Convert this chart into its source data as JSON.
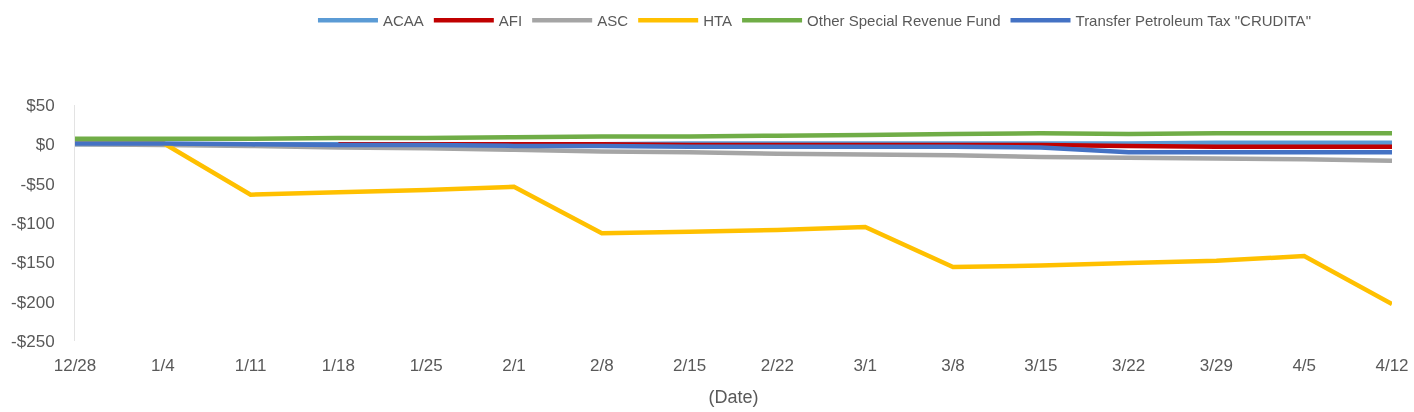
{
  "chart_data": {
    "type": "line",
    "xlabel": "(Date)",
    "categories": [
      "12/28",
      "1/4",
      "1/11",
      "1/18",
      "1/25",
      "2/1",
      "2/8",
      "2/15",
      "2/22",
      "3/1",
      "3/8",
      "3/15",
      "3/22",
      "3/29",
      "4/5",
      "4/12"
    ],
    "series": [
      {
        "name": "ACAA",
        "color": "#5b9bd5",
        "values": [
          0,
          0,
          0,
          0,
          0,
          0,
          0,
          1,
          1,
          1,
          1,
          1,
          1,
          2,
          2,
          2
        ]
      },
      {
        "name": "AFI",
        "color": "#c00000",
        "values": [
          null,
          null,
          null,
          0,
          0,
          0,
          0,
          -1,
          -1,
          -1,
          -1,
          -1,
          -2,
          -3,
          -3,
          -3
        ]
      },
      {
        "name": "ASC",
        "color": "#a5a5a5",
        "values": [
          0,
          -1,
          -2,
          -4,
          -5,
          -7,
          -9,
          -10,
          -12,
          -13,
          -14,
          -16,
          -17,
          -18,
          -19,
          -21
        ]
      },
      {
        "name": "HTA",
        "color": "#ffc000",
        "values": [
          2,
          2,
          -64,
          -61,
          -58,
          -54,
          -113,
          -111,
          -109,
          -105,
          -156,
          -154,
          -151,
          -148,
          -142,
          -203
        ]
      },
      {
        "name": "Other Special Revenue Fund",
        "color": "#70ad47",
        "values": [
          7,
          7,
          7,
          8,
          8,
          9,
          10,
          10,
          11,
          12,
          13,
          14,
          13,
          14,
          14,
          14
        ]
      },
      {
        "name": "Transfer Petroleum Tax \"CRUDITA\"",
        "color": "#4472c4",
        "values": [
          1,
          1,
          0,
          -1,
          -1,
          -2,
          -2,
          -3,
          -3,
          -3,
          -3,
          -4,
          -10,
          -10,
          -10,
          -10
        ]
      }
    ],
    "ylim": [
      -250,
      50
    ],
    "yticks": [
      {
        "value": 50,
        "label": "$50"
      },
      {
        "value": 0,
        "label": "$0"
      },
      {
        "value": -50,
        "label": "-$50"
      },
      {
        "value": -100,
        "label": "-$100"
      },
      {
        "value": -150,
        "label": "-$150"
      },
      {
        "value": -200,
        "label": "-$200"
      },
      {
        "value": -250,
        "label": "-$250"
      }
    ],
    "grid": false,
    "legend": "top",
    "marker": "none",
    "line_style": "solid"
  }
}
